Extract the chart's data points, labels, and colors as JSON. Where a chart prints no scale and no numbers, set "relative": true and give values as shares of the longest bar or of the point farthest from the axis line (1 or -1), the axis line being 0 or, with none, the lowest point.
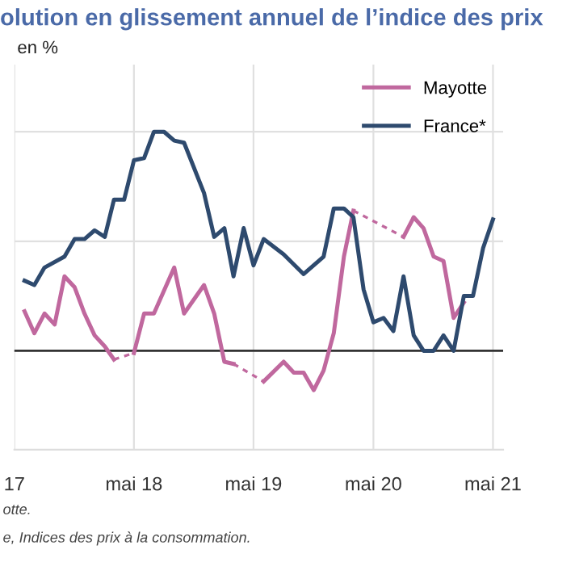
{
  "chart_data": {
    "type": "line",
    "title": "olution en glissement annuel de l’indice des prix",
    "subtitle": "en %",
    "relative": true,
    "grid": true,
    "legend": "top right",
    "xlim": [
      "2017-05",
      "2021-06"
    ],
    "xticks": [
      {
        "value": "2017-05",
        "label": "17"
      },
      {
        "value": "2018-05",
        "label": "mai 18"
      },
      {
        "value": "2019-05",
        "label": "mai 19"
      },
      {
        "value": "2020-05",
        "label": "mai 20"
      },
      {
        "value": "2021-05",
        "label": "mai 21"
      }
    ],
    "series": [
      {
        "name": "Mayotte",
        "color": "#c0689e",
        "x": [
          "2017-06",
          "2017-07",
          "2017-08",
          "2017-09",
          "2017-10",
          "2017-11",
          "2017-12",
          "2018-01",
          "2018-02",
          "2018-03",
          "2018-04",
          "2018-05",
          "2018-06",
          "2018-07",
          "2018-09",
          "2018-10",
          "2018-12",
          "2019-01",
          "2019-02",
          "2019-03",
          "2019-04",
          "2019-06",
          "2019-08",
          "2019-09",
          "2019-10",
          "2019-11",
          "2019-12",
          "2020-01",
          "2020-02",
          "2020-03",
          "2020-05",
          "2020-08",
          "2020-09",
          "2020-10",
          "2020-11",
          "2020-12",
          "2021-01",
          "2021-02"
        ],
        "values": [
          0.18,
          0.08,
          0.17,
          0.12,
          0.34,
          0.29,
          0.17,
          0.07,
          0.02,
          -0.04,
          null,
          -0.01,
          0.17,
          0.17,
          0.38,
          0.17,
          0.3,
          0.17,
          -0.05,
          -0.06,
          null,
          -0.14,
          -0.05,
          -0.1,
          -0.1,
          -0.18,
          -0.09,
          0.08,
          0.43,
          0.64,
          null,
          0.52,
          0.61,
          0.56,
          0.43,
          0.41,
          0.15,
          0.22
        ]
      },
      {
        "name": "France*",
        "color": "#2e4a6e",
        "x": [
          "2017-06",
          "2017-07",
          "2017-08",
          "2017-10",
          "2017-11",
          "2017-12",
          "2018-01",
          "2018-02",
          "2018-03",
          "2018-04",
          "2018-05",
          "2018-06",
          "2018-07",
          "2018-08",
          "2018-09",
          "2018-10",
          "2018-12",
          "2019-01",
          "2019-02",
          "2019-03",
          "2019-04",
          "2019-05",
          "2019-06",
          "2019-08",
          "2019-10",
          "2019-12",
          "2020-01",
          "2020-02",
          "2020-03",
          "2020-04",
          "2020-05",
          "2020-06",
          "2020-07",
          "2020-08",
          "2020-09",
          "2020-10",
          "2020-11",
          "2020-12",
          "2021-01",
          "2021-02",
          "2021-03",
          "2021-04",
          "2021-05"
        ],
        "values": [
          0.32,
          0.3,
          0.38,
          0.43,
          0.51,
          0.51,
          0.55,
          0.52,
          0.69,
          0.69,
          0.87,
          0.88,
          1.0,
          1.0,
          0.96,
          0.95,
          0.72,
          0.52,
          0.56,
          0.34,
          0.56,
          0.39,
          0.51,
          0.44,
          0.35,
          0.43,
          0.65,
          0.65,
          0.61,
          0.28,
          0.13,
          0.15,
          0.09,
          0.34,
          0.07,
          0,
          0,
          0.07,
          0,
          0.25,
          0.25,
          0.47,
          0.6
        ]
      }
    ],
    "annotations": [
      "otte.",
      "e, Indices des prix à la consommation."
    ]
  }
}
